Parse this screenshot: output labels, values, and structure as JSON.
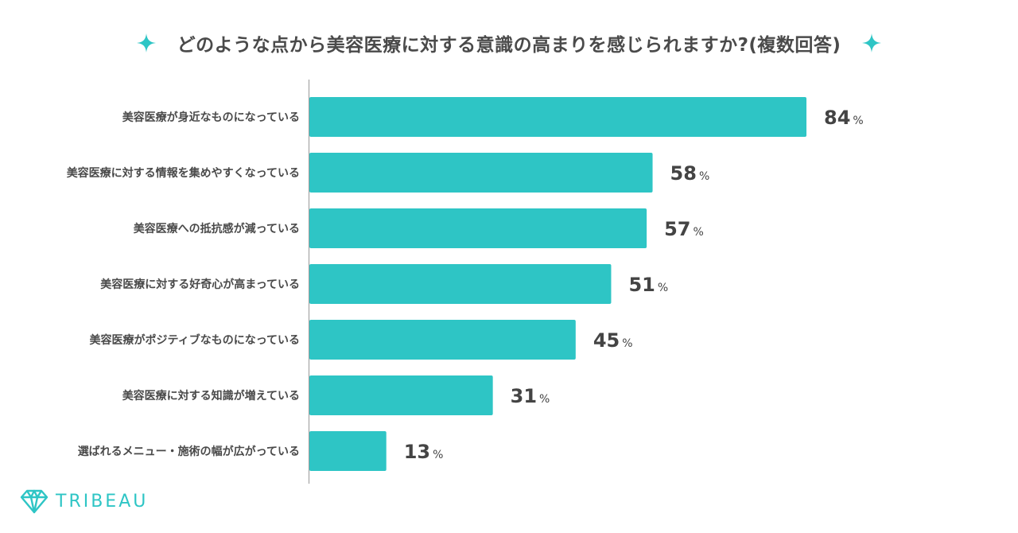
{
  "title": "どのような点から美容医療に対する意識の高まりを感じられますか?(複数回答)",
  "brand": {
    "name": "TRIBEAU"
  },
  "colors": {
    "bar": "#2ec5c5",
    "accent": "#2ec5c5",
    "axis": "#999999",
    "text": "#444444"
  },
  "chart_data": {
    "type": "bar",
    "orientation": "horizontal",
    "title": "どのような点から美容医療に対する意識の高まりを感じられますか?(複数回答)",
    "categories": [
      "美容医療が身近なものになっている",
      "美容医療に対する情報を集めやすくなっている",
      "美容医療への抵抗感が減っている",
      "美容医療に対する好奇心が高まっている",
      "美容医療がポジティブなものになっている",
      "美容医療に対する知識が増えている",
      "選ばれるメニュー・施術の幅が広がっている"
    ],
    "values": [
      84,
      58,
      57,
      51,
      45,
      31,
      13
    ],
    "value_suffix": "%",
    "xlim": [
      0,
      100
    ],
    "grid": false,
    "legend": "none"
  }
}
